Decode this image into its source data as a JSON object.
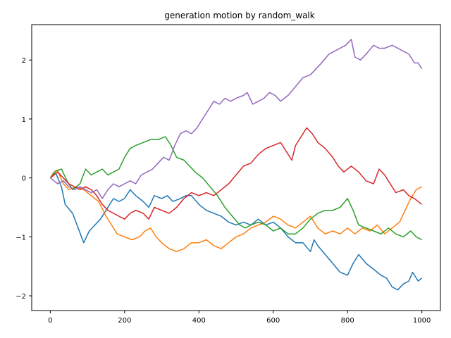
{
  "chart_data": {
    "type": "line",
    "title": "generation motion by random_walk",
    "xlabel": "",
    "ylabel": "",
    "xlim": [
      -50,
      1050
    ],
    "ylim": [
      -2.25,
      2.6
    ],
    "grid": false,
    "legend": "none",
    "xticks": [
      0,
      200,
      400,
      600,
      800,
      1000
    ],
    "yticks": [
      -2,
      -1,
      0,
      1,
      2
    ],
    "series": [
      {
        "color": "#1f77b4",
        "points": [
          [
            0,
            0.0
          ],
          [
            15,
            0.08
          ],
          [
            30,
            -0.15
          ],
          [
            40,
            -0.45
          ],
          [
            60,
            -0.6
          ],
          [
            75,
            -0.85
          ],
          [
            90,
            -1.1
          ],
          [
            105,
            -0.9
          ],
          [
            120,
            -0.8
          ],
          [
            135,
            -0.7
          ],
          [
            150,
            -0.55
          ],
          [
            170,
            -0.35
          ],
          [
            185,
            -0.4
          ],
          [
            200,
            -0.35
          ],
          [
            215,
            -0.2
          ],
          [
            230,
            -0.3
          ],
          [
            250,
            -0.4
          ],
          [
            265,
            -0.5
          ],
          [
            280,
            -0.3
          ],
          [
            300,
            -0.35
          ],
          [
            315,
            -0.3
          ],
          [
            330,
            -0.4
          ],
          [
            350,
            -0.35
          ],
          [
            365,
            -0.3
          ],
          [
            380,
            -0.3
          ],
          [
            400,
            -0.45
          ],
          [
            420,
            -0.55
          ],
          [
            440,
            -0.6
          ],
          [
            460,
            -0.65
          ],
          [
            480,
            -0.75
          ],
          [
            500,
            -0.8
          ],
          [
            520,
            -0.75
          ],
          [
            540,
            -0.8
          ],
          [
            560,
            -0.7
          ],
          [
            580,
            -0.8
          ],
          [
            600,
            -0.75
          ],
          [
            620,
            -0.85
          ],
          [
            640,
            -1.0
          ],
          [
            660,
            -1.1
          ],
          [
            680,
            -1.1
          ],
          [
            700,
            -1.25
          ],
          [
            710,
            -1.05
          ],
          [
            720,
            -1.15
          ],
          [
            740,
            -1.3
          ],
          [
            760,
            -1.45
          ],
          [
            780,
            -1.6
          ],
          [
            800,
            -1.65
          ],
          [
            815,
            -1.45
          ],
          [
            830,
            -1.3
          ],
          [
            850,
            -1.45
          ],
          [
            870,
            -1.55
          ],
          [
            890,
            -1.65
          ],
          [
            905,
            -1.7
          ],
          [
            920,
            -1.85
          ],
          [
            935,
            -1.9
          ],
          [
            950,
            -1.8
          ],
          [
            965,
            -1.75
          ],
          [
            975,
            -1.6
          ],
          [
            990,
            -1.75
          ],
          [
            1000,
            -1.7
          ]
        ]
      },
      {
        "color": "#ff7f0e",
        "points": [
          [
            0,
            0.0
          ],
          [
            10,
            0.1
          ],
          [
            20,
            0.12
          ],
          [
            35,
            -0.1
          ],
          [
            50,
            -0.2
          ],
          [
            70,
            -0.15
          ],
          [
            90,
            -0.2
          ],
          [
            110,
            -0.3
          ],
          [
            130,
            -0.4
          ],
          [
            150,
            -0.65
          ],
          [
            165,
            -0.8
          ],
          [
            180,
            -0.95
          ],
          [
            200,
            -1.0
          ],
          [
            220,
            -1.05
          ],
          [
            240,
            -1.0
          ],
          [
            255,
            -0.9
          ],
          [
            270,
            -0.85
          ],
          [
            285,
            -1.0
          ],
          [
            300,
            -1.1
          ],
          [
            320,
            -1.2
          ],
          [
            340,
            -1.25
          ],
          [
            360,
            -1.2
          ],
          [
            380,
            -1.1
          ],
          [
            400,
            -1.1
          ],
          [
            420,
            -1.05
          ],
          [
            440,
            -1.15
          ],
          [
            460,
            -1.2
          ],
          [
            480,
            -1.1
          ],
          [
            500,
            -1.0
          ],
          [
            520,
            -0.95
          ],
          [
            540,
            -0.85
          ],
          [
            560,
            -0.8
          ],
          [
            580,
            -0.75
          ],
          [
            600,
            -0.65
          ],
          [
            620,
            -0.7
          ],
          [
            640,
            -0.8
          ],
          [
            660,
            -0.85
          ],
          [
            680,
            -0.75
          ],
          [
            700,
            -0.65
          ],
          [
            720,
            -0.85
          ],
          [
            740,
            -0.95
          ],
          [
            760,
            -0.9
          ],
          [
            780,
            -0.95
          ],
          [
            800,
            -0.85
          ],
          [
            820,
            -0.95
          ],
          [
            840,
            -0.85
          ],
          [
            860,
            -0.9
          ],
          [
            880,
            -0.8
          ],
          [
            900,
            -0.95
          ],
          [
            920,
            -0.85
          ],
          [
            940,
            -0.75
          ],
          [
            955,
            -0.55
          ],
          [
            970,
            -0.35
          ],
          [
            985,
            -0.2
          ],
          [
            1000,
            -0.15
          ]
        ]
      },
      {
        "color": "#2ca02c",
        "points": [
          [
            0,
            0.0
          ],
          [
            15,
            0.12
          ],
          [
            30,
            0.15
          ],
          [
            45,
            -0.05
          ],
          [
            60,
            -0.2
          ],
          [
            80,
            -0.1
          ],
          [
            95,
            0.15
          ],
          [
            110,
            0.05
          ],
          [
            125,
            0.1
          ],
          [
            140,
            0.15
          ],
          [
            155,
            0.05
          ],
          [
            170,
            0.1
          ],
          [
            185,
            0.15
          ],
          [
            200,
            0.35
          ],
          [
            215,
            0.5
          ],
          [
            230,
            0.55
          ],
          [
            250,
            0.6
          ],
          [
            270,
            0.65
          ],
          [
            290,
            0.65
          ],
          [
            310,
            0.7
          ],
          [
            325,
            0.55
          ],
          [
            340,
            0.35
          ],
          [
            360,
            0.3
          ],
          [
            375,
            0.2
          ],
          [
            390,
            0.1
          ],
          [
            410,
            0.0
          ],
          [
            430,
            -0.15
          ],
          [
            450,
            -0.3
          ],
          [
            470,
            -0.5
          ],
          [
            490,
            -0.65
          ],
          [
            510,
            -0.8
          ],
          [
            525,
            -0.85
          ],
          [
            540,
            -0.8
          ],
          [
            560,
            -0.75
          ],
          [
            580,
            -0.8
          ],
          [
            600,
            -0.9
          ],
          [
            620,
            -0.85
          ],
          [
            640,
            -0.95
          ],
          [
            660,
            -0.95
          ],
          [
            680,
            -0.85
          ],
          [
            700,
            -0.7
          ],
          [
            720,
            -0.6
          ],
          [
            740,
            -0.55
          ],
          [
            760,
            -0.55
          ],
          [
            780,
            -0.5
          ],
          [
            800,
            -0.35
          ],
          [
            815,
            -0.55
          ],
          [
            830,
            -0.8
          ],
          [
            850,
            -0.85
          ],
          [
            870,
            -0.9
          ],
          [
            890,
            -0.95
          ],
          [
            910,
            -0.85
          ],
          [
            930,
            -0.95
          ],
          [
            950,
            -1.0
          ],
          [
            970,
            -0.9
          ],
          [
            985,
            -1.0
          ],
          [
            1000,
            -1.05
          ]
        ]
      },
      {
        "color": "#d62728",
        "points": [
          [
            0,
            0.0
          ],
          [
            10,
            0.05
          ],
          [
            20,
            0.1
          ],
          [
            35,
            0.0
          ],
          [
            50,
            -0.1
          ],
          [
            65,
            -0.15
          ],
          [
            80,
            -0.2
          ],
          [
            95,
            -0.15
          ],
          [
            110,
            -0.2
          ],
          [
            125,
            -0.3
          ],
          [
            140,
            -0.45
          ],
          [
            155,
            -0.55
          ],
          [
            170,
            -0.6
          ],
          [
            185,
            -0.65
          ],
          [
            200,
            -0.7
          ],
          [
            215,
            -0.6
          ],
          [
            230,
            -0.55
          ],
          [
            250,
            -0.6
          ],
          [
            265,
            -0.7
          ],
          [
            280,
            -0.5
          ],
          [
            300,
            -0.55
          ],
          [
            320,
            -0.6
          ],
          [
            340,
            -0.5
          ],
          [
            360,
            -0.35
          ],
          [
            380,
            -0.25
          ],
          [
            400,
            -0.3
          ],
          [
            420,
            -0.25
          ],
          [
            440,
            -0.3
          ],
          [
            460,
            -0.2
          ],
          [
            480,
            -0.1
          ],
          [
            500,
            0.05
          ],
          [
            520,
            0.2
          ],
          [
            540,
            0.25
          ],
          [
            560,
            0.4
          ],
          [
            580,
            0.5
          ],
          [
            600,
            0.55
          ],
          [
            620,
            0.6
          ],
          [
            635,
            0.45
          ],
          [
            650,
            0.3
          ],
          [
            660,
            0.55
          ],
          [
            675,
            0.7
          ],
          [
            690,
            0.85
          ],
          [
            705,
            0.75
          ],
          [
            720,
            0.6
          ],
          [
            740,
            0.5
          ],
          [
            760,
            0.35
          ],
          [
            775,
            0.2
          ],
          [
            790,
            0.1
          ],
          [
            810,
            0.2
          ],
          [
            830,
            0.1
          ],
          [
            850,
            -0.05
          ],
          [
            870,
            -0.1
          ],
          [
            885,
            0.15
          ],
          [
            900,
            0.05
          ],
          [
            915,
            -0.1
          ],
          [
            930,
            -0.25
          ],
          [
            950,
            -0.2
          ],
          [
            965,
            -0.3
          ],
          [
            980,
            -0.35
          ],
          [
            1000,
            -0.45
          ]
        ]
      },
      {
        "color": "#9467bd",
        "points": [
          [
            0,
            0.0
          ],
          [
            10,
            -0.05
          ],
          [
            20,
            -0.1
          ],
          [
            35,
            -0.05
          ],
          [
            50,
            -0.15
          ],
          [
            65,
            -0.2
          ],
          [
            80,
            -0.15
          ],
          [
            95,
            -0.2
          ],
          [
            110,
            -0.25
          ],
          [
            125,
            -0.2
          ],
          [
            140,
            -0.35
          ],
          [
            155,
            -0.2
          ],
          [
            170,
            -0.1
          ],
          [
            185,
            -0.15
          ],
          [
            200,
            -0.1
          ],
          [
            215,
            -0.05
          ],
          [
            230,
            -0.1
          ],
          [
            245,
            0.05
          ],
          [
            260,
            0.1
          ],
          [
            275,
            0.15
          ],
          [
            290,
            0.25
          ],
          [
            305,
            0.35
          ],
          [
            320,
            0.3
          ],
          [
            335,
            0.55
          ],
          [
            350,
            0.75
          ],
          [
            365,
            0.8
          ],
          [
            380,
            0.75
          ],
          [
            395,
            0.85
          ],
          [
            410,
            1.0
          ],
          [
            425,
            1.15
          ],
          [
            440,
            1.3
          ],
          [
            455,
            1.25
          ],
          [
            470,
            1.35
          ],
          [
            485,
            1.3
          ],
          [
            500,
            1.35
          ],
          [
            520,
            1.4
          ],
          [
            530,
            1.45
          ],
          [
            545,
            1.25
          ],
          [
            560,
            1.3
          ],
          [
            575,
            1.35
          ],
          [
            590,
            1.45
          ],
          [
            605,
            1.4
          ],
          [
            620,
            1.3
          ],
          [
            640,
            1.4
          ],
          [
            660,
            1.55
          ],
          [
            680,
            1.7
          ],
          [
            700,
            1.75
          ],
          [
            715,
            1.85
          ],
          [
            730,
            1.95
          ],
          [
            750,
            2.1
          ],
          [
            765,
            2.15
          ],
          [
            780,
            2.2
          ],
          [
            795,
            2.25
          ],
          [
            810,
            2.35
          ],
          [
            820,
            2.05
          ],
          [
            835,
            2.0
          ],
          [
            850,
            2.1
          ],
          [
            870,
            2.25
          ],
          [
            885,
            2.2
          ],
          [
            900,
            2.2
          ],
          [
            920,
            2.25
          ],
          [
            935,
            2.2
          ],
          [
            950,
            2.15
          ],
          [
            965,
            2.1
          ],
          [
            980,
            1.95
          ],
          [
            990,
            1.95
          ],
          [
            1000,
            1.85
          ]
        ]
      }
    ]
  }
}
